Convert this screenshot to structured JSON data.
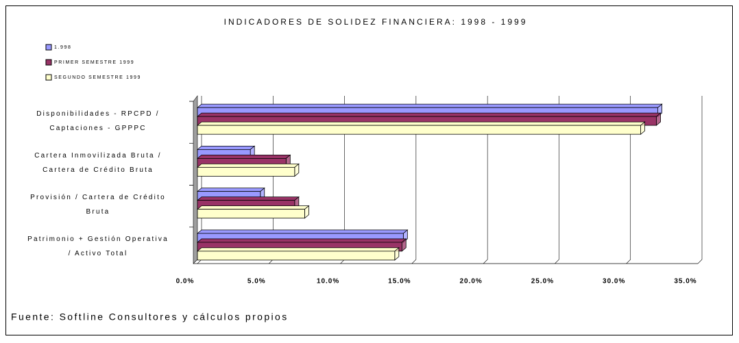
{
  "chart_data": {
    "type": "bar",
    "orientation": "horizontal",
    "title": "INDICADORES DE SOLIDEZ FINANCIERA: 1998 - 1999",
    "categories": [
      "Disponibilidades - RPCPD /\nCaptaciones - GPPPC",
      "Cartera Inmovilizada Bruta /\nCartera de Crédito Bruta",
      "Provisión / Cartera de Crédito\nBruta",
      "Patrimonio + Gestión Operativa\n/ Activo Total"
    ],
    "series": [
      {
        "name": "1.998",
        "color": "#9999ff",
        "values": [
          32.2,
          3.7,
          4.4,
          14.4
        ]
      },
      {
        "name": "PRIMER SEMESTRE 1999",
        "color": "#993366",
        "values": [
          32.1,
          6.2,
          6.8,
          14.3
        ]
      },
      {
        "name": "SEGUNDO SEMESTRE 1999",
        "color": "#ffffcc",
        "values": [
          31.0,
          6.8,
          7.5,
          13.8
        ]
      }
    ],
    "xlim": [
      0,
      35
    ],
    "xticks": [
      {
        "value": 0,
        "label": "0.0%"
      },
      {
        "value": 5,
        "label": "5.0%"
      },
      {
        "value": 10,
        "label": "10.0%"
      },
      {
        "value": 15,
        "label": "15.0%"
      },
      {
        "value": 20,
        "label": "20.0%"
      },
      {
        "value": 25,
        "label": "25.0%"
      },
      {
        "value": 30,
        "label": "30.0%"
      },
      {
        "value": 35,
        "label": "35.0%"
      }
    ],
    "grid": true,
    "legend": "top-left",
    "source": "Fuente: Softline Consultores y cálculos propios"
  }
}
